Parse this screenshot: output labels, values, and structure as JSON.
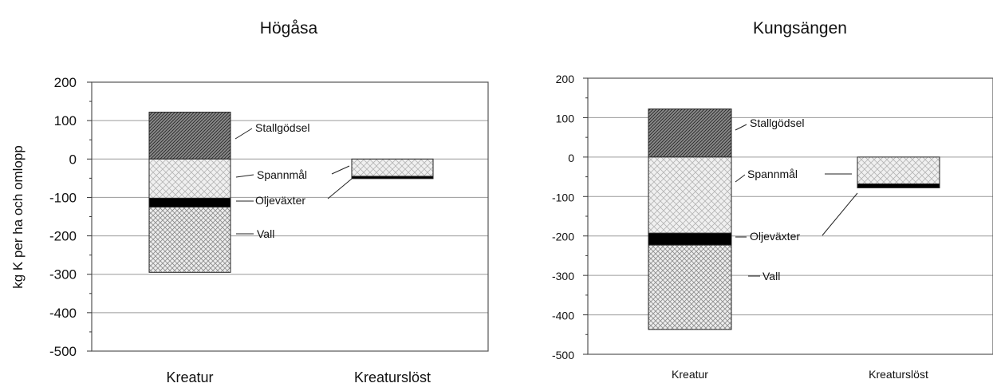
{
  "ylabel": "kg K per ha och omlopp",
  "colors": {
    "Stallgödsel": "#8a8a8a",
    "Spannmål": "#e4e4e4",
    "Oljeväxter": "#000000",
    "Vall": "#d4d4d4"
  },
  "chart_data": [
    {
      "type": "bar",
      "title": "Högåsa",
      "xlabel": "",
      "ylabel": "kg K per ha och omlopp",
      "ylim": [
        -500,
        200
      ],
      "yticks": [
        200,
        100,
        0,
        -100,
        -200,
        -300,
        -400,
        -500
      ],
      "grid": true,
      "stacked": true,
      "categories": [
        "Kreatur",
        "Kreaturslöst"
      ],
      "series": [
        {
          "name": "Stallgödsel",
          "values": [
            122,
            0
          ]
        },
        {
          "name": "Spannmål",
          "values": [
            -102,
            -45
          ]
        },
        {
          "name": "Oljeväxter",
          "values": [
            -23,
            -6
          ]
        },
        {
          "name": "Vall",
          "values": [
            -170,
            0
          ]
        }
      ],
      "annotations": [
        "Stallgödsel",
        "Spannmål",
        "Oljeväxter",
        "Vall"
      ]
    },
    {
      "type": "bar",
      "title": "Kungsängen",
      "xlabel": "",
      "ylabel": "",
      "ylim": [
        -500,
        200
      ],
      "yticks": [
        200,
        100,
        0,
        -100,
        -200,
        -300,
        -400,
        -500
      ],
      "grid": true,
      "stacked": true,
      "categories": [
        "Kreatur",
        "Kreaturslöst"
      ],
      "series": [
        {
          "name": "Stallgödsel",
          "values": [
            122,
            0
          ]
        },
        {
          "name": "Spannmål",
          "values": [
            -193,
            -68
          ]
        },
        {
          "name": "Oljeväxter",
          "values": [
            -30,
            -10
          ]
        },
        {
          "name": "Vall",
          "values": [
            -214,
            0
          ]
        }
      ],
      "annotations": [
        "Stallgödsel",
        "Spannmål",
        "Oljeväxter",
        "Vall"
      ]
    }
  ]
}
